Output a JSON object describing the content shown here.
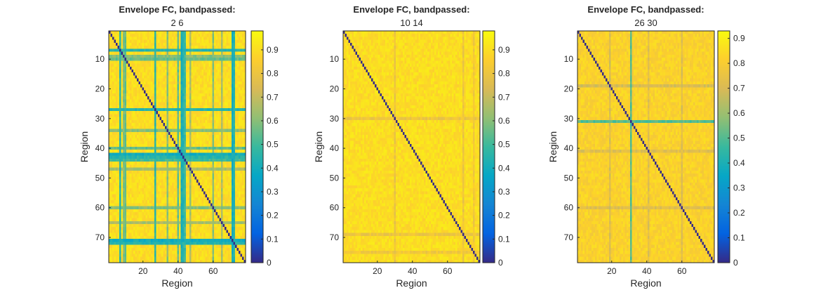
{
  "figure": {
    "panels": [
      {
        "title": "Envelope FC, bandpassed:",
        "subtitle": "2  6"
      },
      {
        "title": "Envelope FC, bandpassed:",
        "subtitle": "10  14"
      },
      {
        "title": "Envelope FC, bandpassed:",
        "subtitle": "26  30"
      }
    ]
  },
  "colors": {
    "parula_stops": [
      "#352a87",
      "#0363e1",
      "#1485d4",
      "#06a7c6",
      "#38b99e",
      "#92bf73",
      "#d9ba56",
      "#fcce2e",
      "#f9fb0e"
    ]
  },
  "chart_data": [
    {
      "type": "heatmap",
      "title": "Envelope FC, bandpassed:",
      "subtitle": "2  6",
      "xlabel": "Region",
      "ylabel": "Region",
      "n_regions": 78,
      "xlim": [
        0.5,
        78.5
      ],
      "ylim": [
        0.5,
        78.5
      ],
      "x_ticks": [
        20,
        40,
        60
      ],
      "y_ticks": [
        10,
        20,
        30,
        40,
        50,
        60,
        70
      ],
      "y_axis_direction": "reverse",
      "diagonal_value": 0,
      "colorbar": {
        "range": [
          0,
          0.98
        ],
        "ticks": [
          0,
          0.1,
          0.2,
          0.3,
          0.4,
          0.5,
          0.6,
          0.7,
          0.8,
          0.9
        ],
        "location": "right"
      },
      "typical_value": 0.9,
      "low_regions": [
        {
          "region": 7,
          "value": 0.45
        },
        {
          "region": 9,
          "value": 0.6
        },
        {
          "region": 10,
          "value": 0.55
        },
        {
          "region": 27,
          "value": 0.45
        },
        {
          "region": 34,
          "value": 0.6
        },
        {
          "region": 40,
          "value": 0.55
        },
        {
          "region": 42,
          "value": 0.4
        },
        {
          "region": 43,
          "value": 0.45
        },
        {
          "region": 44,
          "value": 0.5
        },
        {
          "region": 47,
          "value": 0.65
        },
        {
          "region": 60,
          "value": 0.6
        },
        {
          "region": 65,
          "value": 0.65
        },
        {
          "region": 71,
          "value": 0.4
        },
        {
          "region": 72,
          "value": 0.45
        }
      ]
    },
    {
      "type": "heatmap",
      "title": "Envelope FC, bandpassed:",
      "subtitle": "10  14",
      "xlabel": "Region",
      "ylabel": "Region",
      "n_regions": 78,
      "xlim": [
        0.5,
        78.5
      ],
      "ylim": [
        0.5,
        78.5
      ],
      "x_ticks": [
        20,
        40,
        60
      ],
      "y_ticks": [
        10,
        20,
        30,
        40,
        50,
        60,
        70
      ],
      "y_axis_direction": "reverse",
      "diagonal_value": 0,
      "colorbar": {
        "range": [
          0,
          0.98
        ],
        "ticks": [
          0,
          0.1,
          0.2,
          0.3,
          0.4,
          0.5,
          0.6,
          0.7,
          0.8,
          0.9
        ],
        "location": "right"
      },
      "typical_value": 0.9,
      "low_regions": [
        {
          "region": 30,
          "value": 0.8
        },
        {
          "region": 69,
          "value": 0.8
        },
        {
          "region": 75,
          "value": 0.82
        }
      ]
    },
    {
      "type": "heatmap",
      "title": "Envelope FC, bandpassed:",
      "subtitle": "26  30",
      "xlabel": "Region",
      "ylabel": "Region",
      "n_regions": 78,
      "xlim": [
        0.5,
        78.5
      ],
      "ylim": [
        0.5,
        78.5
      ],
      "x_ticks": [
        20,
        40,
        60
      ],
      "y_ticks": [
        10,
        20,
        30,
        40,
        50,
        60,
        70
      ],
      "y_axis_direction": "reverse",
      "diagonal_value": 0,
      "colorbar": {
        "range": [
          0,
          0.93
        ],
        "ticks": [
          0,
          0.1,
          0.2,
          0.3,
          0.4,
          0.5,
          0.6,
          0.7,
          0.8,
          0.9
        ],
        "location": "right"
      },
      "typical_value": 0.82,
      "low_regions": [
        {
          "region": 19,
          "value": 0.7
        },
        {
          "region": 31,
          "value": 0.5
        },
        {
          "region": 41,
          "value": 0.72
        },
        {
          "region": 60,
          "value": 0.72
        }
      ]
    }
  ]
}
